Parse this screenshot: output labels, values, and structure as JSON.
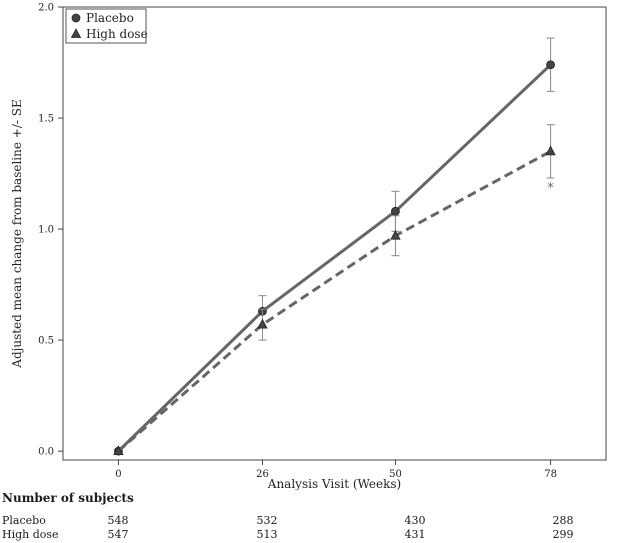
{
  "chart_data": {
    "type": "line",
    "title": "",
    "xlabel": "Analysis Visit (Weeks)",
    "ylabel": "Adjusted mean change from baseline +/- SE",
    "x": [
      0,
      26,
      50,
      78
    ],
    "xticks": [
      "0",
      "26",
      "50",
      "78"
    ],
    "xlim": [
      -10,
      88
    ],
    "ylim": [
      -0.04,
      2.0
    ],
    "yticks": [
      "0.0",
      "0.5",
      "1.0",
      "1.5",
      "2.0"
    ],
    "ytick_values": [
      0.0,
      0.5,
      1.0,
      1.5,
      2.0
    ],
    "grid": false,
    "legend": "top-left",
    "series": [
      {
        "name": "Placebo",
        "marker": "circle",
        "line": "solid",
        "color": "#666666",
        "values": [
          0.0,
          0.63,
          1.08,
          1.74
        ],
        "se_low": [
          0.0,
          0.56,
          0.99,
          1.62
        ],
        "se_high": [
          0.0,
          0.7,
          1.17,
          1.86
        ]
      },
      {
        "name": "High dose",
        "marker": "triangle",
        "line": "dashed",
        "color": "#666666",
        "values": [
          0.0,
          0.57,
          0.97,
          1.35
        ],
        "se_low": [
          0.0,
          0.5,
          0.88,
          1.23
        ],
        "se_high": [
          0.0,
          0.64,
          1.06,
          1.47
        ]
      }
    ],
    "annotations": [
      {
        "text": "*",
        "x": 78,
        "y": 1.19
      }
    ]
  },
  "subjects": {
    "title": "Number of subjects",
    "rows": [
      {
        "name": "Placebo",
        "values": [
          "548",
          "532",
          "430",
          "288"
        ]
      },
      {
        "name": "High dose",
        "values": [
          "547",
          "513",
          "431",
          "299"
        ]
      }
    ]
  }
}
